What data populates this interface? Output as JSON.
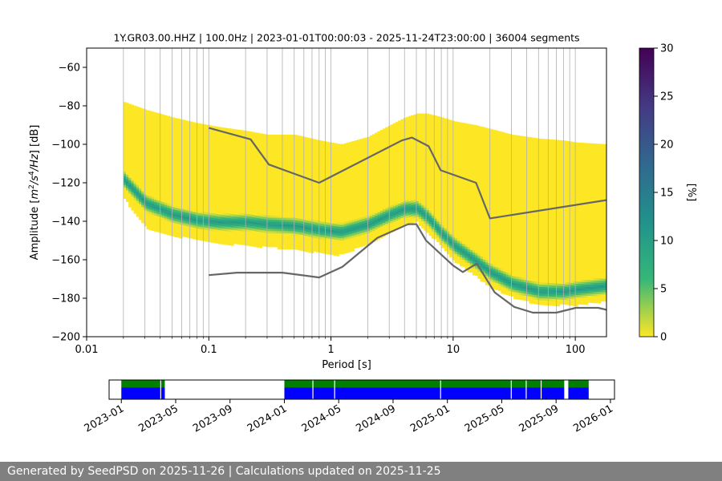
{
  "chart_data": [
    {
      "type": "heatmap",
      "title": "1Y.GR03.00.HHZ | 100.0Hz | 2023-01-01T00:00:03 - 2025-11-24T23:00:00 | 36004 segments",
      "xlabel": "Period [s]",
      "ylabel_parts": [
        "Amplitude [",
        "m",
        "2",
        "/",
        "s",
        "4",
        "/",
        "Hz",
        "] [dB]"
      ],
      "xscale": "log",
      "xlim": [
        0.01,
        180
      ],
      "ylim": [
        -200,
        -50
      ],
      "x_ticks": [
        0.01,
        0.1,
        1,
        10,
        100
      ],
      "x_tick_labels": [
        "0.01",
        "0.1",
        "1",
        "10",
        "100"
      ],
      "y_ticks": [
        -200,
        -180,
        -160,
        -140,
        -120,
        -100,
        -80,
        -60
      ],
      "y_tick_labels": [
        "−200",
        "−180",
        "−160",
        "−140",
        "−120",
        "−100",
        "−80",
        "−60"
      ],
      "grid": "vertical-minor",
      "colormap": [
        "#fde725",
        "#35b779",
        "#21918c",
        "#31688e",
        "#443983",
        "#440154"
      ],
      "colorbar": {
        "label": "[%]",
        "range": [
          0,
          30
        ],
        "ticks": [
          0,
          5,
          10,
          15,
          20,
          25,
          30
        ],
        "tick_labels": [
          "0",
          "5",
          "10",
          "15",
          "20",
          "25",
          "30"
        ]
      },
      "heatmap_profile": {
        "period": [
          0.02,
          0.03,
          0.05,
          0.08,
          0.12,
          0.2,
          0.3,
          0.5,
          0.8,
          1.2,
          2,
          3,
          4,
          5,
          6,
          8,
          10,
          15,
          20,
          30,
          50,
          80,
          100,
          180
        ],
        "mode_db": [
          -118,
          -130,
          -136,
          -139,
          -140,
          -140,
          -141,
          -142,
          -144,
          -145,
          -141,
          -136,
          -133,
          -133,
          -137,
          -146,
          -152,
          -160,
          -166,
          -172,
          -176,
          -176,
          -175,
          -173
        ],
        "upper_db": [
          -78,
          -82,
          -86,
          -89,
          -91,
          -93,
          -95,
          -95,
          -98,
          -100,
          -96,
          -90,
          -86,
          -84,
          -84,
          -86,
          -88,
          -90,
          -92,
          -95,
          -97,
          -98,
          -99,
          -100
        ],
        "lower_db": [
          -128,
          -143,
          -147,
          -149,
          -151,
          -152,
          -153,
          -154,
          -156,
          -157,
          -151,
          -145,
          -141,
          -140,
          -145,
          -153,
          -160,
          -168,
          -174,
          -179,
          -183,
          -183,
          -183,
          -181
        ]
      },
      "series": [
        {
          "x": [
            0.1,
            0.22,
            0.31,
            0.8,
            3.8,
            4.6,
            6.3,
            7.9,
            15.4,
            20,
            180
          ],
          "y": [
            -91.5,
            -97.4,
            -110.5,
            -120,
            -98,
            -96.5,
            -101,
            -113.5,
            -120,
            -138.5,
            -129
          ],
          "color": "#666666"
        },
        {
          "x": [
            0.1,
            0.17,
            0.4,
            0.8,
            1.24,
            2.4,
            4.3,
            5,
            6,
            10,
            12,
            15.6,
            21.9,
            31.6,
            45,
            70,
            101,
            154,
            180
          ],
          "y": [
            -168,
            -166.7,
            -166.7,
            -169.2,
            -163.7,
            -148.6,
            -141.5,
            -141.5,
            -150,
            -163,
            -166.4,
            -162,
            -177,
            -184.5,
            -187.5,
            -187.5,
            -185,
            -185,
            -186
          ],
          "color": "#666666"
        }
      ]
    },
    {
      "type": "timeline",
      "x_tick_labels": [
        "2023-01",
        "2023-05",
        "2023-09",
        "2024-01",
        "2024-05",
        "2024-09",
        "2025-01",
        "2025-05",
        "2025-09",
        "2026-01"
      ],
      "x_ticks_months": [
        0,
        4,
        8,
        12,
        16,
        20,
        24,
        28,
        32,
        36
      ],
      "xlim_months": [
        -0.9,
        36.3
      ],
      "colors": {
        "upper": "#008000",
        "lower": "#0000ff"
      },
      "spans": [
        {
          "start": 0.0,
          "end": 3.2
        },
        {
          "start": 12.0,
          "end": 32.6
        },
        {
          "start": 32.9,
          "end": 34.4
        }
      ],
      "gaps": [
        2.9,
        14.1,
        15.7,
        23.5,
        28.7,
        29.8,
        30.9
      ]
    }
  ],
  "footer": {
    "text": "Generated by SeedPSD on 2025-11-26 | Calculations updated on 2025-11-25"
  }
}
